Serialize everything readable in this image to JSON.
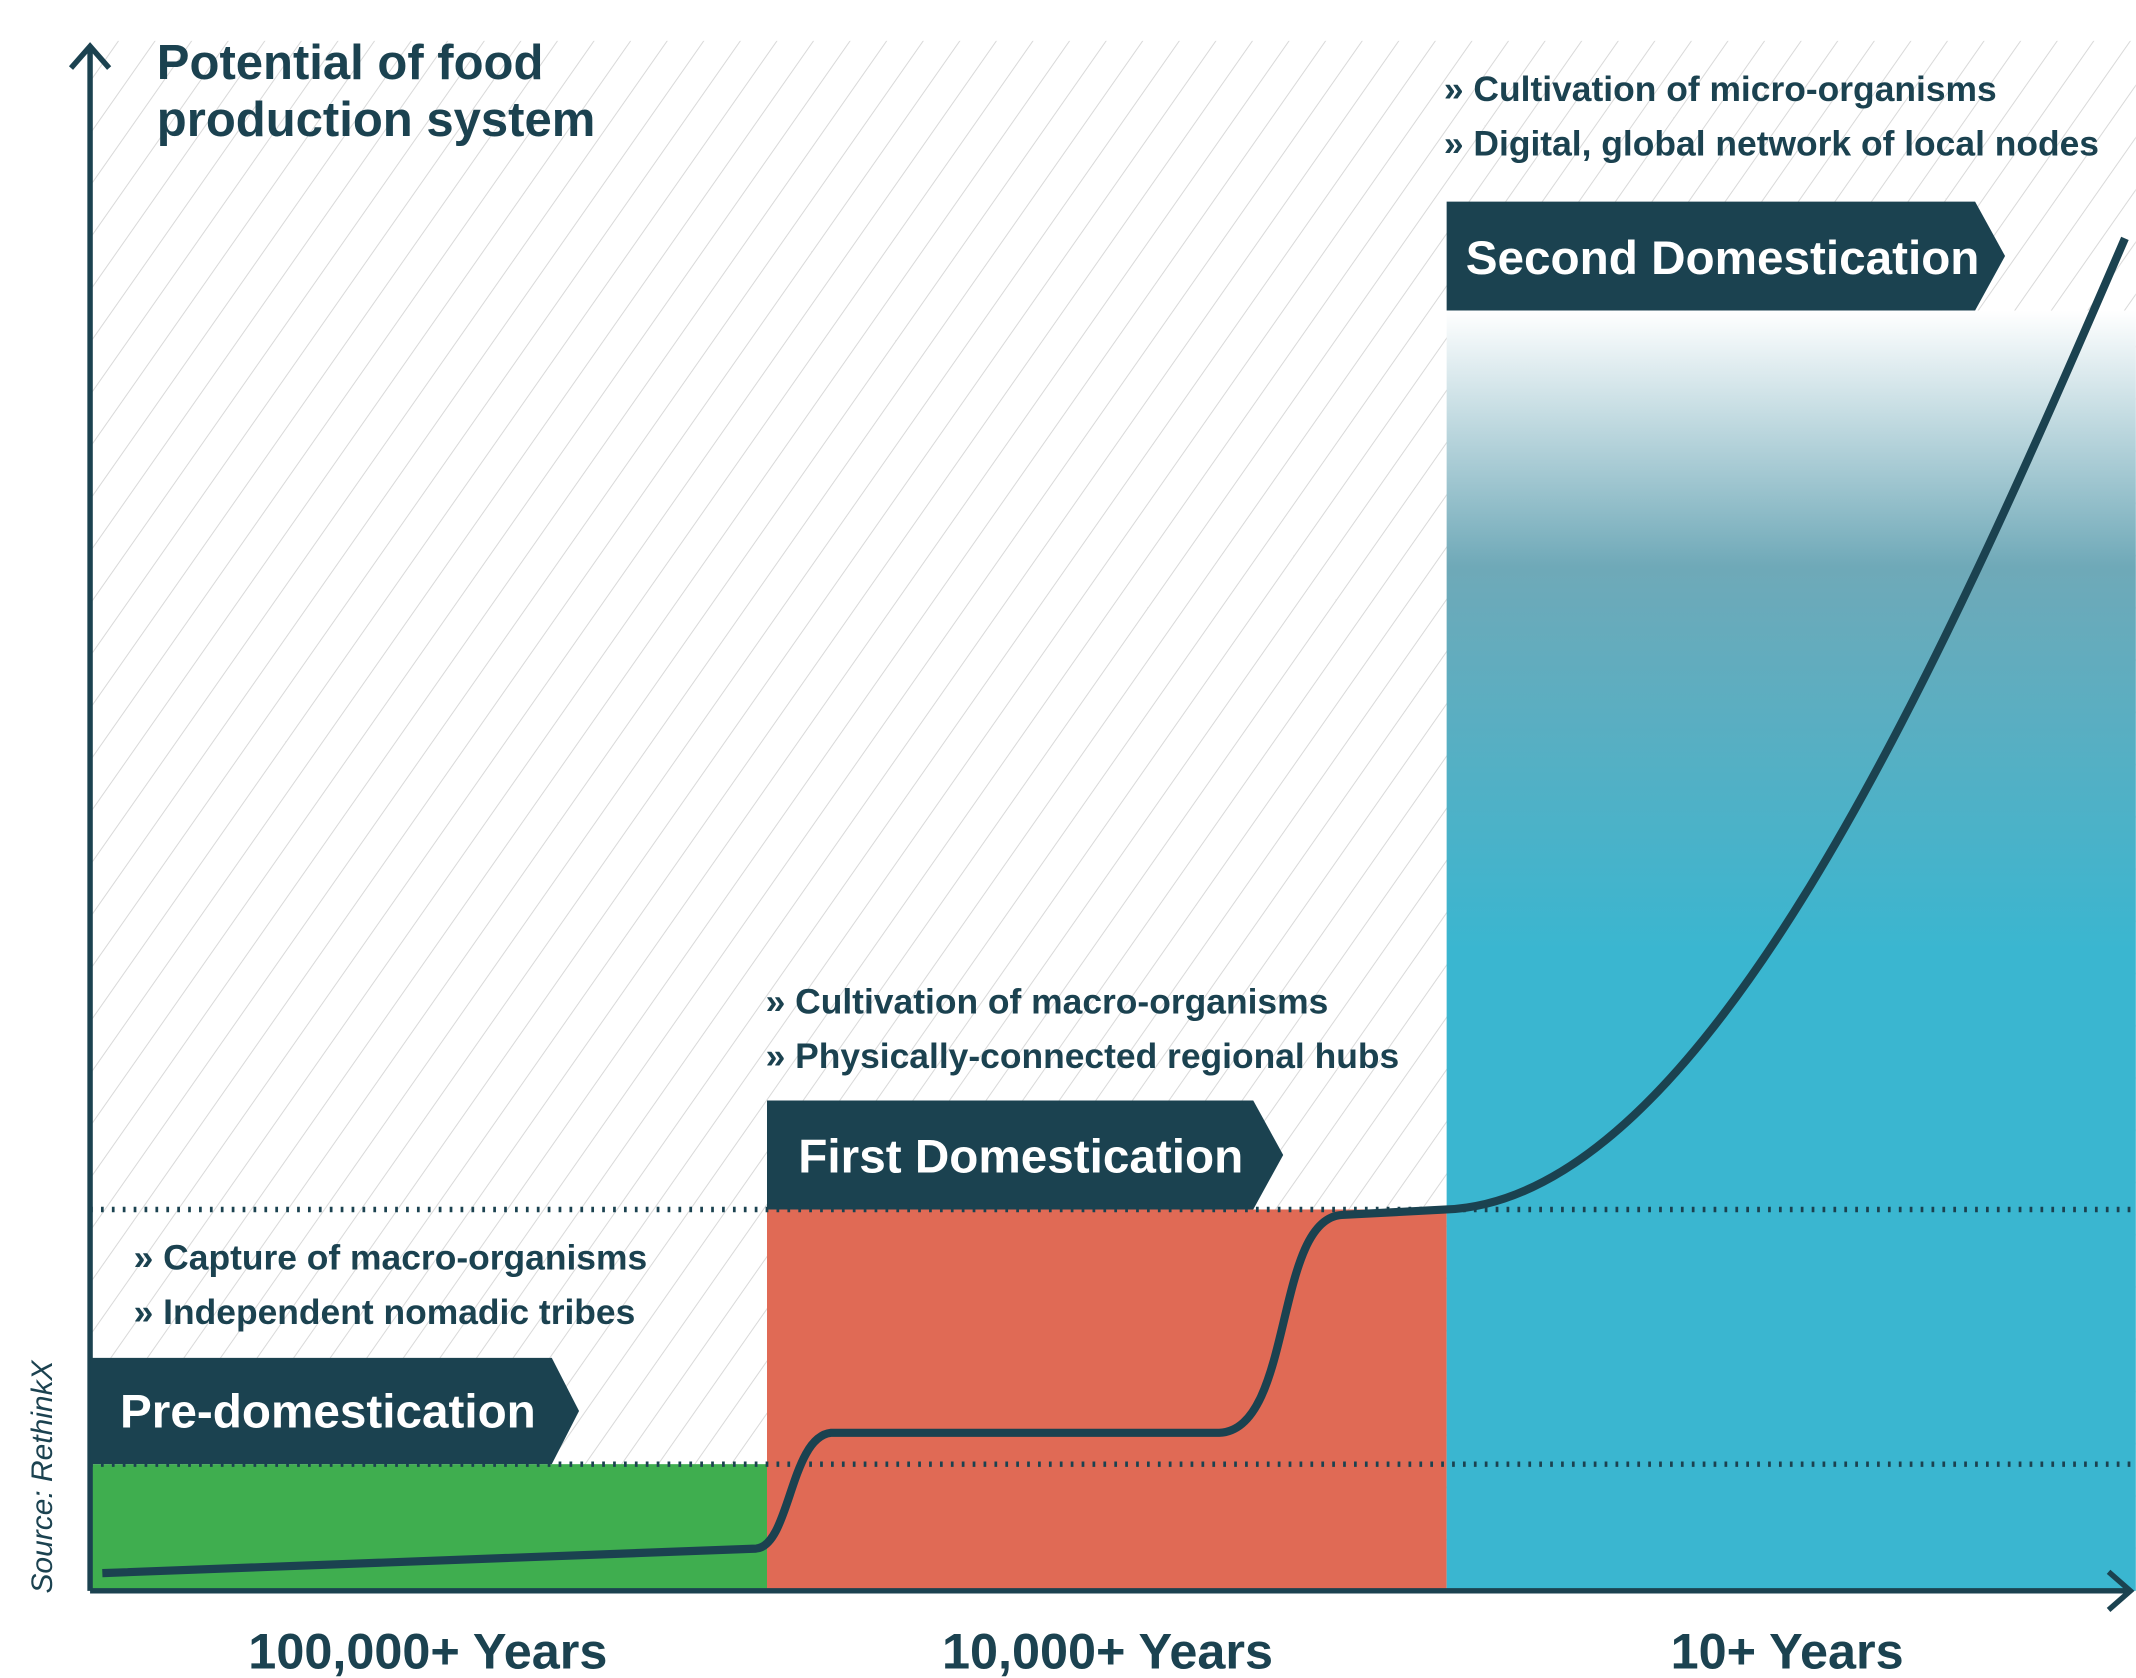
{
  "title_lines": [
    "Potential of food",
    "production system"
  ],
  "source": "Source: RethinkX",
  "phases": [
    {
      "label": "Pre-domestication",
      "bullets": [
        "» Capture of macro-organisms",
        "» Independent nomadic tribes"
      ],
      "duration": "100,000+ Years"
    },
    {
      "label": "First Domestication",
      "bullets": [
        "» Cultivation of macro-organisms",
        "» Physically-connected regional hubs"
      ],
      "duration": "10,000+ Years"
    },
    {
      "label": "Second Domestication",
      "bullets": [
        "» Cultivation of micro-organisms",
        "» Digital, global network of local nodes"
      ],
      "duration": "10+ Years"
    }
  ]
}
